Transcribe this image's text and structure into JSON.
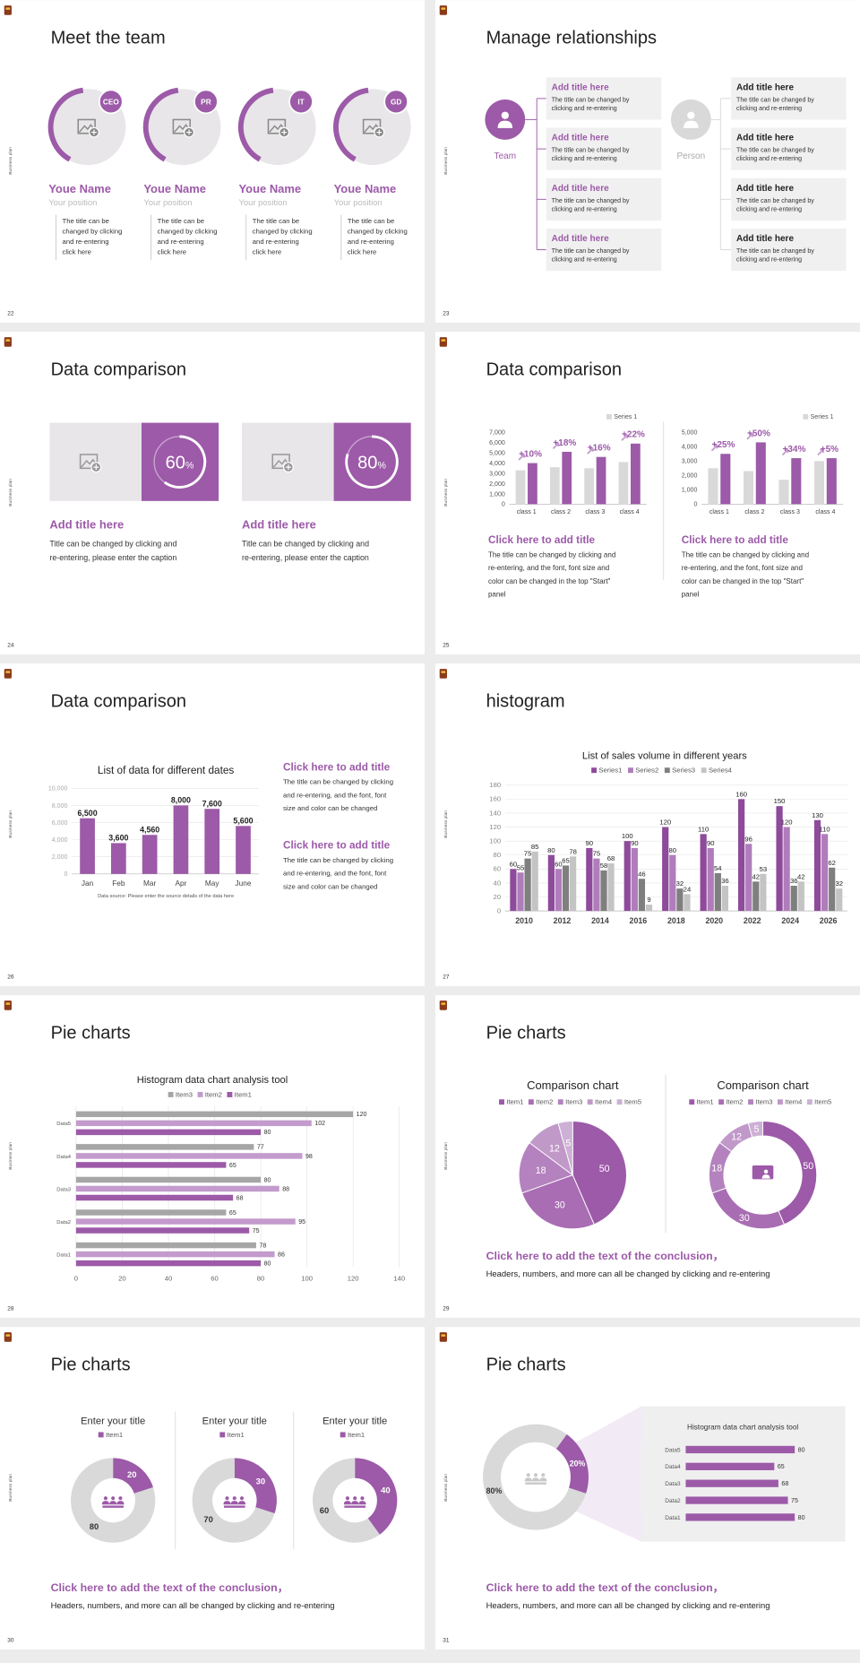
{
  "slides": [
    {
      "kind": "team",
      "number": 22,
      "side": "Business plan",
      "title": "Meet the team",
      "members": [
        {
          "badge": "CEO",
          "name": "Youe Name",
          "position": "Your position",
          "text": "The title can be changed by clicking and re-entering click here"
        },
        {
          "badge": "PR",
          "name": "Youe Name",
          "position": "Your position",
          "text": "The title can be changed by clicking and re-entering click here"
        },
        {
          "badge": "IT",
          "name": "Youe Name",
          "position": "Your position",
          "text": "The title can be changed by clicking and re-entering click here"
        },
        {
          "badge": "GD",
          "name": "Youe Name",
          "position": "Your position",
          "text": "The title can be changed by clicking and re-entering click here"
        }
      ]
    },
    {
      "kind": "relations",
      "number": 23,
      "side": "Business plan",
      "title": "Manage relationships",
      "groups": [
        {
          "label": "Team",
          "boxes": [
            {
              "title": "Add title here",
              "text": "The title can be changed by clicking and re-entering"
            },
            {
              "title": "Add title here",
              "text": "The title can be changed by clicking and re-entering"
            },
            {
              "title": "Add title here",
              "text": "The title can be changed by clicking and re-entering"
            },
            {
              "title": "Add title here",
              "text": "The title can be changed by clicking and re-entering"
            }
          ]
        },
        {
          "label": "Person",
          "boxes": [
            {
              "title": "Add title here",
              "text": "The title can be changed by clicking and re-entering"
            },
            {
              "title": "Add title here",
              "text": "The title can be changed by clicking and re-entering"
            },
            {
              "title": "Add title here",
              "text": "The title can be changed by clicking and re-entering"
            },
            {
              "title": "Add title here",
              "text": "The title can be changed by clicking and re-entering"
            }
          ]
        }
      ]
    },
    {
      "kind": "rings",
      "number": 24,
      "side": "Business plan",
      "title": "Data comparison",
      "panels": [
        {
          "value": 60,
          "unit": "%",
          "title": "Add title here",
          "text": "Title can be changed by clicking and re-entering, please enter the caption"
        },
        {
          "value": 80,
          "unit": "%",
          "title": "Add title here",
          "text": "Title can be changed by clicking and re-entering, please enter the caption"
        }
      ]
    },
    {
      "kind": "growth",
      "number": 25,
      "side": "Business plan",
      "title": "Data comparison",
      "charts": [
        {
          "type": "bar",
          "categories": [
            "class 1",
            "class 2",
            "class 3",
            "class 4"
          ],
          "series": [
            {
              "name": "Series 1",
              "color": "#d9d9d9",
              "values": [
                3300,
                3600,
                3500,
                4100
              ]
            },
            {
              "color": "#9c5aa8",
              "values": [
                4000,
                5100,
                4600,
                5900
              ]
            }
          ],
          "annotations": [
            "+10%",
            "+18%",
            "+16%",
            "+22%"
          ],
          "ylim": [
            0,
            7000
          ],
          "yticks": [
            0,
            {
              "value": 1000,
              "label": "1,000"
            },
            {
              "value": 2000,
              "label": "2,000"
            },
            {
              "value": 3000,
              "label": "3,000"
            },
            {
              "value": 4000,
              "label": "4,000"
            },
            {
              "value": 5000,
              "label": "5,000"
            },
            {
              "value": 6000,
              "label": "6,000"
            },
            {
              "value": 7000,
              "label": "7,000"
            }
          ],
          "grid": false
        },
        {
          "type": "bar",
          "categories": [
            "class 1",
            "class 2",
            "class 3",
            "class 4"
          ],
          "series": [
            {
              "name": "Series 1",
              "color": "#d9d9d9",
              "values": [
                2500,
                2300,
                1700,
                3000
              ]
            },
            {
              "color": "#9c5aa8",
              "values": [
                3500,
                4300,
                3200,
                3200
              ]
            }
          ],
          "annotations": [
            "+25%",
            "+50%",
            "+34%",
            "+5%"
          ],
          "ylim": [
            0,
            5000
          ],
          "yticks": [
            0,
            {
              "value": 1000,
              "label": "1,000"
            },
            {
              "value": 2000,
              "label": "2,000"
            },
            {
              "value": 3000,
              "label": "3,000"
            },
            {
              "value": 4000,
              "label": "4,000"
            },
            {
              "value": 5000,
              "label": "5,000"
            }
          ],
          "grid": false
        }
      ],
      "blocks": [
        {
          "title": "Click here to add title",
          "text": "The title can be changed by clicking and re-entering, and the font, font size and color can be changed in the top \"Start\" panel"
        },
        {
          "title": "Click here to add title",
          "text": "The title can be changed by clicking and re-entering, and the font, font size and color can be changed in the top \"Start\" panel"
        }
      ]
    },
    {
      "kind": "datebars",
      "number": 26,
      "side": "Business plan",
      "title": "Data comparison",
      "chart": {
        "type": "bar",
        "title": "List of data for different dates",
        "categories": [
          "Jan",
          "Feb",
          "Mar",
          "Apr",
          "May",
          "June"
        ],
        "values": [
          6500,
          3600,
          4560,
          8000,
          7600,
          5600
        ],
        "value_labels": [
          "6,500",
          "3,600",
          "4,560",
          "8,000",
          "7,600",
          "5,600"
        ],
        "color": "#9c5aa8",
        "ylim": [
          0,
          10000
        ],
        "yticks": [
          0,
          {
            "value": 2000,
            "label": "2,000"
          },
          {
            "value": 4000,
            "label": "4,000"
          },
          {
            "value": 6000,
            "label": "6,000"
          },
          {
            "value": 8000,
            "label": "8,000"
          },
          {
            "value": 10000,
            "label": "10,000"
          }
        ],
        "grid": true,
        "caption": "Data source: Please enter the source details of the data here"
      },
      "blocks": [
        {
          "title": "Click here to add title",
          "text": "The title can be changed by clicking and re-entering, and the font, font size and color can be changed"
        },
        {
          "title": "Click here to add title",
          "text": "The title can be changed by clicking and re-entering, and the font, font size and color can be changed"
        }
      ]
    },
    {
      "kind": "histogram",
      "number": 27,
      "side": "Business plan",
      "title": "histogram",
      "chart": {
        "type": "bar",
        "title": "List of sales volume in different years",
        "categories": [
          "2010",
          "2012",
          "2014",
          "2016",
          "2018",
          "2020",
          "2022",
          "2024",
          "2026"
        ],
        "series": [
          {
            "name": "Series1",
            "color": "#8e4a9b",
            "values": [
              60,
              80,
              90,
              100,
              120,
              110,
              160,
              150,
              130
            ]
          },
          {
            "name": "Series2",
            "color": "#b07cbb",
            "values": [
              55,
              60,
              75,
              90,
              80,
              90,
              96,
              120,
              110
            ]
          },
          {
            "name": "Series3",
            "color": "#7f7f7f",
            "values": [
              75,
              65,
              58,
              46,
              32,
              54,
              42,
              36,
              62
            ]
          },
          {
            "name": "Series4",
            "color": "#c4c4c4",
            "values": [
              85,
              78,
              68,
              9,
              24,
              36,
              53,
              42,
              32
            ]
          }
        ],
        "ylim": [
          0,
          180
        ],
        "yticks": [
          0,
          20,
          40,
          60,
          80,
          100,
          120,
          140,
          160,
          180
        ],
        "grid": true
      }
    },
    {
      "kind": "hbars",
      "number": 28,
      "side": "Business plan",
      "title": "Pie charts",
      "chart": {
        "type": "hbar",
        "title": "Histogram data chart analysis tool",
        "categories": [
          "Data5",
          "Data4",
          "Data3",
          "Data2",
          "Data1"
        ],
        "series": [
          {
            "name": "Item3",
            "color": "#a6a6a6",
            "values": [
              120,
              77,
              80,
              65,
              78
            ]
          },
          {
            "name": "Item2",
            "color": "#c39bcc",
            "values": [
              102,
              98,
              88,
              95,
              86
            ]
          },
          {
            "name": "Item1",
            "color": "#9c5aa8",
            "values": [
              80,
              65,
              68,
              75,
              80
            ]
          }
        ],
        "xlim": [
          0,
          140
        ],
        "xticks": [
          0,
          20,
          40,
          60,
          80,
          100,
          120,
          140
        ],
        "grid": true
      }
    },
    {
      "kind": "pies",
      "number": 29,
      "side": "Business plan",
      "title": "Pie charts",
      "charts": [
        {
          "type": "pie",
          "title": "Comparison chart",
          "categories": [
            "Item1",
            "Item2",
            "Item3",
            "Item4",
            "Item5"
          ],
          "values": [
            50,
            30,
            18,
            12,
            5
          ],
          "colors": [
            "#9c5aa8",
            "#a96db3",
            "#b482be",
            "#c099c9",
            "#cdb0d5"
          ]
        },
        {
          "type": "donut",
          "title": "Comparison chart",
          "categories": [
            "Item1",
            "Item2",
            "Item3",
            "Item4",
            "Item5"
          ],
          "values": [
            50,
            30,
            18,
            12,
            5
          ],
          "colors": [
            "#9c5aa8",
            "#a96db3",
            "#b482be",
            "#c099c9",
            "#cdb0d5"
          ]
        }
      ],
      "conclusion": {
        "title": "Click here to add the text of the conclusion，",
        "text": "Headers, numbers, and more can all be changed by clicking and re-entering"
      }
    },
    {
      "kind": "donuts",
      "number": 30,
      "side": "Business plan",
      "title": "Pie charts",
      "charts": [
        {
          "type": "donut",
          "title": "Enter your title",
          "categories": [
            "Item1",
            null
          ],
          "values": [
            20,
            80
          ],
          "colors": [
            "#9c5aa8",
            "#d9d9d9"
          ]
        },
        {
          "type": "donut",
          "title": "Enter your title",
          "categories": [
            "Item1",
            null
          ],
          "values": [
            30,
            70
          ],
          "colors": [
            "#9c5aa8",
            "#d9d9d9"
          ]
        },
        {
          "type": "donut",
          "title": "Enter your title",
          "categories": [
            "Item1",
            null
          ],
          "values": [
            40,
            60
          ],
          "colors": [
            "#9c5aa8",
            "#d9d9d9"
          ]
        }
      ],
      "conclusion": {
        "title": "Click here to add the text of the conclusion，",
        "text": "Headers, numbers, and more can all be changed by clicking and re-entering"
      }
    },
    {
      "kind": "split",
      "number": 31,
      "side": "Business plan",
      "title": "Pie charts",
      "charts": [
        {
          "type": "donut",
          "values": [
            20,
            80
          ],
          "value_labels": [
            "20%",
            "80%"
          ],
          "colors": [
            "#9c5aa8",
            "#d9d9d9"
          ]
        },
        {
          "type": "hbar",
          "title": "Histogram data chart analysis tool",
          "categories": [
            "Data5",
            "Data4",
            "Data3",
            "Data2",
            "Data1"
          ],
          "values": [
            80,
            65,
            68,
            75,
            80
          ],
          "color": "#9c5aa8",
          "xlim": [
            0,
            100
          ]
        }
      ],
      "conclusion": {
        "title": "Click here to add the text of the conclusion，",
        "text": "Headers, numbers, and more can all be changed by clicking and re-entering"
      }
    }
  ]
}
